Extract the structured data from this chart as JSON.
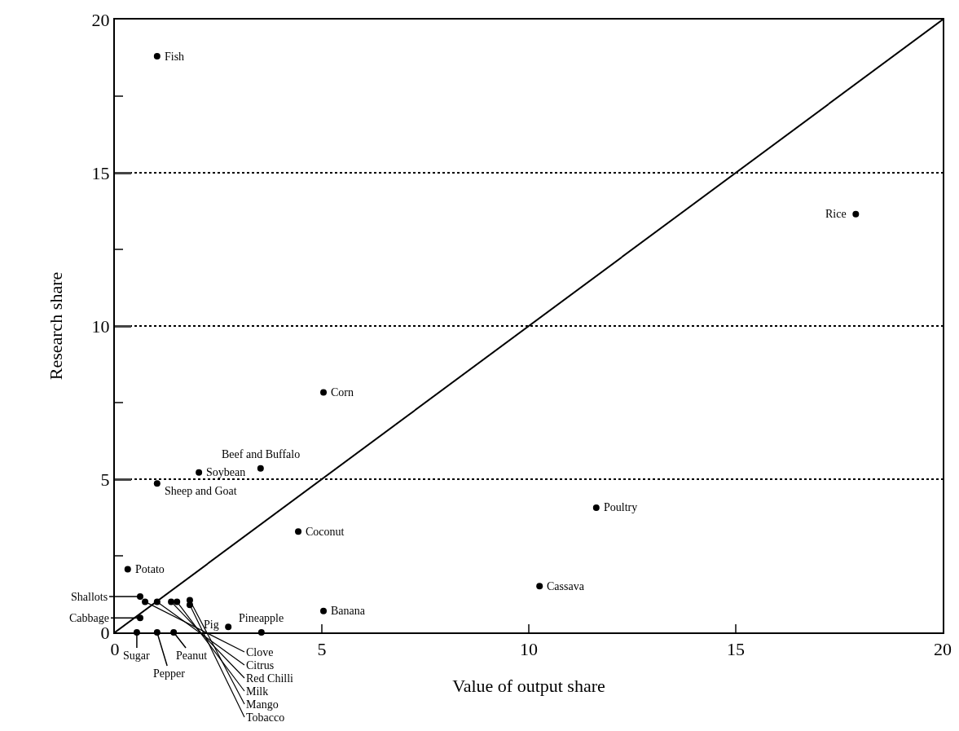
{
  "chart_data": {
    "type": "scatter",
    "xlabel": "Value of output share",
    "ylabel": "Research share",
    "xlim": [
      0,
      20
    ],
    "ylim": [
      0,
      20
    ],
    "xticks": [
      0,
      5,
      10,
      15,
      20
    ],
    "yticks": [
      0,
      {
        "value": 2.5,
        "label": null
      },
      5,
      {
        "value": 7.5,
        "label": null
      },
      10,
      {
        "value": 12.5,
        "label": null
      },
      15,
      {
        "value": 17.5,
        "label": null
      },
      20
    ],
    "grid": "y",
    "marker": "circle",
    "series": [
      {
        "color": "#000000",
        "x": [
          1.02,
          17.9,
          5.04,
          3.52,
          2.03,
          1.02,
          11.63,
          4.43,
          0.31,
          10.26,
          5.04,
          2.74,
          3.54,
          0.61,
          0.61,
          0.53,
          1.02,
          1.42,
          0.73,
          1.02,
          1.36,
          1.5,
          1.81,
          1.81
        ],
        "values": [
          18.8,
          13.65,
          7.83,
          5.35,
          5.22,
          4.86,
          4.07,
          3.29,
          2.06,
          1.51,
          0.7,
          0.18,
          0,
          1.17,
          0.47,
          0,
          0,
          0,
          1.0,
          1.0,
          1.0,
          1.0,
          1.05,
          0.9
        ]
      },
      {
        "type": "line",
        "color": "#000000",
        "line_style": "solid",
        "marker": "none",
        "x": [
          0,
          20
        ],
        "values": [
          0,
          20
        ]
      }
    ],
    "annotations": [
      {
        "text": "Fish",
        "x": 1.02,
        "y": 18.8
      },
      {
        "text": "Rice",
        "x": 17.9,
        "y": 13.65
      },
      {
        "text": "Corn",
        "x": 5.04,
        "y": 7.83
      },
      {
        "text": "Beef and Buffalo",
        "x": 3.52,
        "y": 5.35
      },
      {
        "text": "Soybean",
        "x": 2.03,
        "y": 5.22
      },
      {
        "text": "Sheep and Goat",
        "x": 1.02,
        "y": 4.86
      },
      {
        "text": "Poultry",
        "x": 11.63,
        "y": 4.07
      },
      {
        "text": "Coconut",
        "x": 4.43,
        "y": 3.29
      },
      {
        "text": "Potato",
        "x": 0.31,
        "y": 2.06
      },
      {
        "text": "Cassava",
        "x": 10.26,
        "y": 1.51
      },
      {
        "text": "Banana",
        "x": 5.04,
        "y": 0.7
      },
      {
        "text": "Pig",
        "x": 2.74,
        "y": 0.18
      },
      {
        "text": "Pineapple",
        "x": 3.54,
        "y": 0
      },
      {
        "text": "Shallots",
        "x": 0.61,
        "y": 1.17
      },
      {
        "text": "Cabbage",
        "x": 0.61,
        "y": 0.47
      },
      {
        "text": "Sugar",
        "x": 0.53,
        "y": 0
      },
      {
        "text": "Pepper",
        "x": 1.02,
        "y": 0
      },
      {
        "text": "Peanut",
        "x": 1.42,
        "y": 0
      },
      {
        "text": "Clove",
        "x": 0.73,
        "y": 1.0
      },
      {
        "text": "Citrus",
        "x": 1.02,
        "y": 1.0
      },
      {
        "text": "Red Chilli",
        "x": 1.36,
        "y": 1.0
      },
      {
        "text": "Milk",
        "x": 1.5,
        "y": 1.0
      },
      {
        "text": "Mango",
        "x": 1.81,
        "y": 1.05
      },
      {
        "text": "Tobacco",
        "x": 1.81,
        "y": 0.9
      }
    ]
  }
}
